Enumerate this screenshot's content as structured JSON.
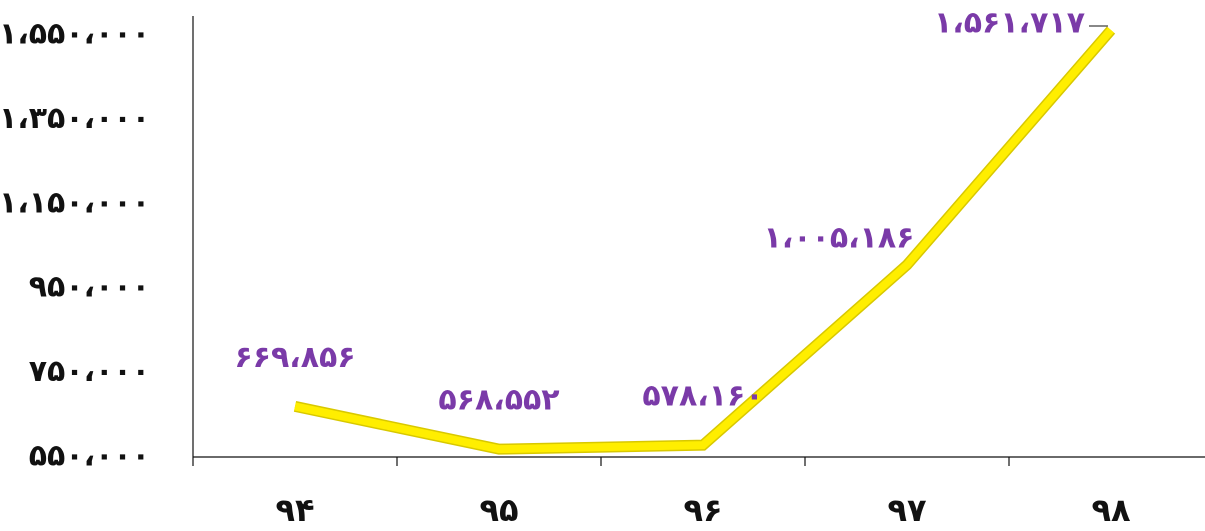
{
  "chart_data": {
    "type": "line",
    "title": "",
    "xlabel": "",
    "ylabel": "",
    "categories": [
      "۹۴",
      "۹۵",
      "۹۶",
      "۹۷",
      "۹۸"
    ],
    "series": [
      {
        "values": [
          669856,
          568552,
          578160,
          1005186,
          1561717
        ],
        "data_labels": [
          "۶۶۹،۸۵۶",
          "۵۶۸،۵۵۲",
          "۵۷۸،۱۶۰",
          "۱،۰۰۵،۱۸۶",
          "۱،۵۶۱،۷۱۷"
        ]
      }
    ],
    "y_ticks": [
      550000,
      750000,
      950000,
      1150000,
      1350000,
      1550000
    ],
    "y_tick_labels": [
      "۵۵۰،۰۰۰",
      "۷۵۰،۰۰۰",
      "۹۵۰،۰۰۰",
      "۱،۱۵۰،۰۰۰",
      "۱،۳۵۰،۰۰۰",
      "۱،۵۵۰،۰۰۰"
    ],
    "ylim": [
      550000,
      1550000
    ],
    "grid": false,
    "legend": "none",
    "colors": {
      "line": "#ffee00",
      "line_edge": "#d8c800",
      "data_label": "#7a3aa8",
      "axis": "#111111",
      "background": "#ffffff"
    }
  }
}
